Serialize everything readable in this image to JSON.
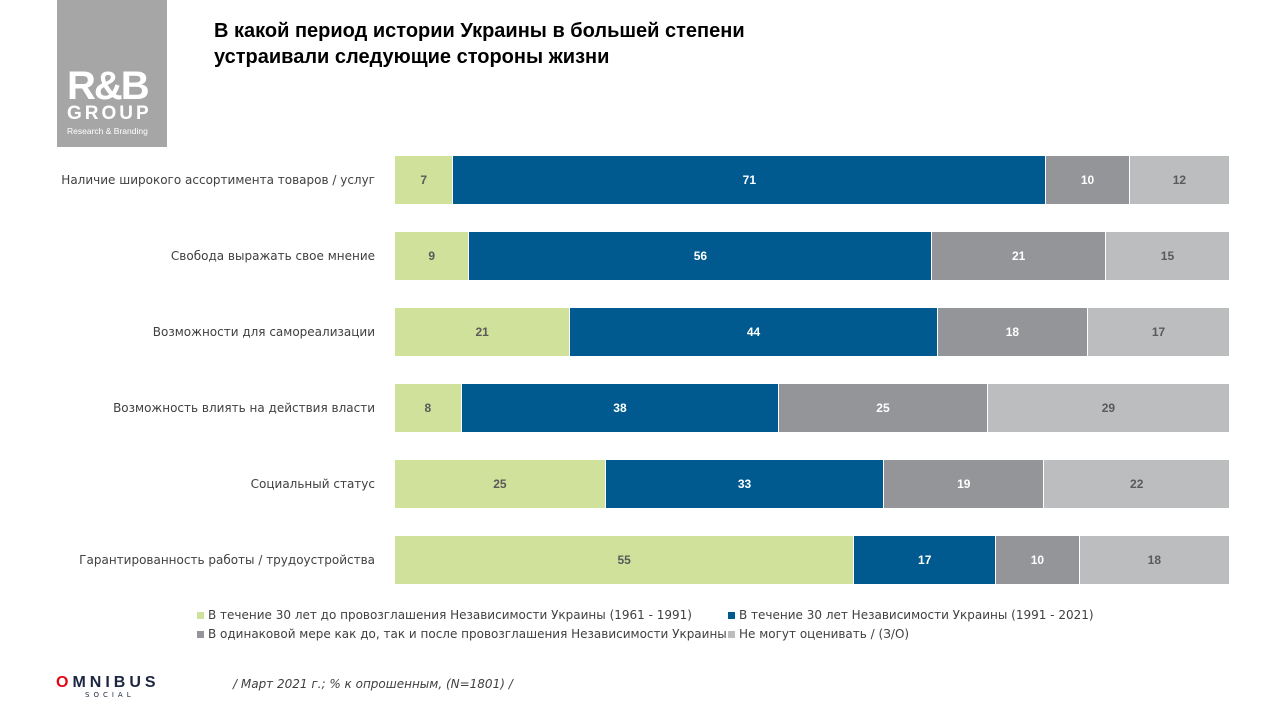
{
  "logo": {
    "main": "R&B",
    "group": "GROUP",
    "sub": "Research & Branding"
  },
  "title_lines": [
    "В какой период истории Украины в большей степени",
    "устраивали следующие стороны жизни"
  ],
  "chart_data": {
    "type": "bar",
    "orientation": "horizontal-stacked-100",
    "categories": [
      "Наличие широкого ассортимента товаров / услуг",
      "Свобода выражать свое мнение",
      "Возможности для самореализации",
      "Возможность влиять на действия власти",
      "Социальный статус",
      "Гарантированность работы / трудоустройства"
    ],
    "series": [
      {
        "name": "В течение 30 лет до провозглашения Независимости Украины (1961 - 1991)",
        "color": "#d0e19b",
        "label_color": "#5a5a5a",
        "values": [
          7,
          9,
          21,
          8,
          25,
          55
        ]
      },
      {
        "name": "В течение 30 лет Независимости Украины (1991 - 2021)",
        "color": "#005a8f",
        "label_color": "#ffffff",
        "values": [
          71,
          56,
          44,
          38,
          33,
          17
        ]
      },
      {
        "name": "В одинаковой мере как до, так и после провозглашения Независимости Украины",
        "color": "#939598",
        "label_color": "#ffffff",
        "values": [
          10,
          21,
          18,
          25,
          19,
          10
        ]
      },
      {
        "name": "Не могут оценивать / (З/О)",
        "color": "#bcbdbf",
        "label_color": "#5a5a5a",
        "values": [
          12,
          15,
          17,
          29,
          22,
          18
        ]
      }
    ],
    "legend_position": "bottom",
    "grid": false
  },
  "footer": {
    "brand": "OMNIBUS",
    "brand_sub": "SOCIAL",
    "note": "/ Март 2021 г.; % к опрошенным,  (N=1801) /"
  }
}
